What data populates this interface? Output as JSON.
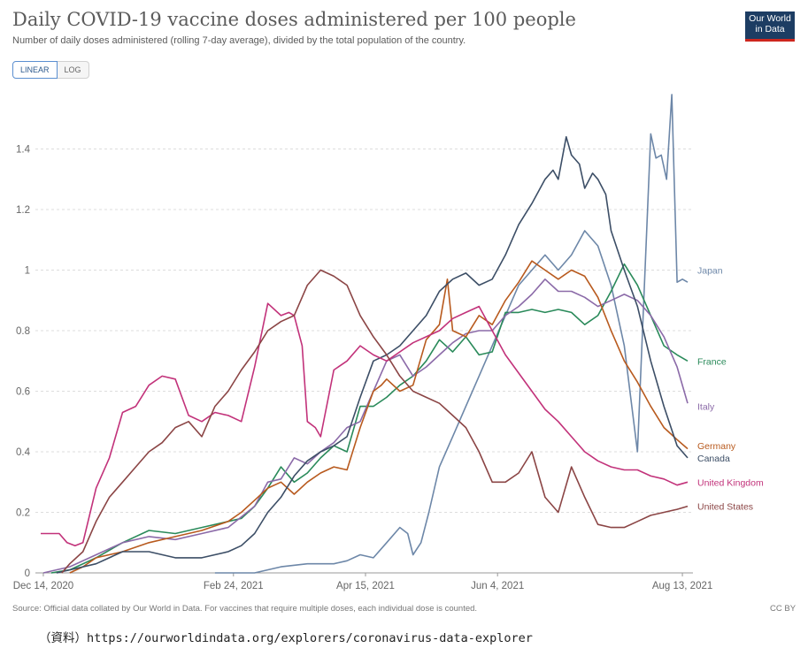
{
  "header": {
    "title": "Daily COVID-19 vaccine doses administered per 100 people",
    "subtitle": "Number of daily doses administered (rolling 7-day average), divided by the total population of the country.",
    "logo_line1": "Our World",
    "logo_line2": "in Data"
  },
  "controls": {
    "linear_label": "LINEAR",
    "log_label": "LOG"
  },
  "footer": {
    "source": "Source: Official data collated by Our World in Data. For vaccines that require multiple doses, each individual dose is counted.",
    "license": "CC BY",
    "reference": "（資料）https://ourworldindata.org/explorers/coronavirus-data-explorer"
  },
  "chart_data": {
    "type": "line",
    "title": "Daily COVID-19 vaccine doses administered per 100 people",
    "xlabel": "",
    "ylabel": "",
    "ylim": [
      0,
      1.6
    ],
    "yticks": [
      0,
      0.2,
      0.4,
      0.6,
      0.8,
      1,
      1.2,
      1.4
    ],
    "ytick_labels": [
      "0",
      "0.2",
      "0.4",
      "0.6",
      "0.8",
      "1",
      "1.2",
      "1.4"
    ],
    "x_unit": "days since Dec 14, 2020",
    "xlim": [
      -3,
      246
    ],
    "xticks": [
      0,
      72,
      122,
      172,
      242
    ],
    "xtick_labels": [
      "Dec 14, 2020",
      "Feb 24, 2021",
      "Apr 15, 2021",
      "Jun 4, 2021",
      "Aug 13, 2021"
    ],
    "grid": true,
    "series": [
      {
        "name": "Japan",
        "color": "#6d87a8",
        "x": [
          65,
          80,
          90,
          100,
          110,
          115,
          120,
          125,
          130,
          135,
          138,
          140,
          143,
          146,
          150,
          155,
          160,
          165,
          170,
          175,
          180,
          185,
          190,
          195,
          200,
          205,
          210,
          215,
          220,
          225,
          230,
          232,
          234,
          236,
          238,
          240,
          242,
          244
        ],
        "y": [
          0,
          0,
          0.02,
          0.03,
          0.03,
          0.04,
          0.06,
          0.05,
          0.1,
          0.15,
          0.13,
          0.06,
          0.1,
          0.2,
          0.35,
          0.45,
          0.55,
          0.65,
          0.75,
          0.85,
          0.95,
          1.0,
          1.05,
          1.0,
          1.05,
          1.13,
          1.08,
          0.95,
          0.75,
          0.4,
          1.45,
          1.37,
          1.38,
          1.3,
          1.58,
          0.96,
          0.97,
          0.96
        ]
      },
      {
        "name": "France",
        "color": "#2a8a5a",
        "x": [
          3,
          10,
          20,
          30,
          40,
          50,
          60,
          70,
          75,
          80,
          85,
          90,
          95,
          100,
          105,
          110,
          115,
          120,
          125,
          130,
          135,
          140,
          145,
          150,
          155,
          160,
          165,
          170,
          175,
          180,
          185,
          190,
          195,
          200,
          205,
          210,
          215,
          220,
          225,
          230,
          235,
          240,
          244
        ],
        "y": [
          0,
          0.01,
          0.05,
          0.1,
          0.14,
          0.13,
          0.15,
          0.17,
          0.18,
          0.22,
          0.28,
          0.35,
          0.3,
          0.33,
          0.38,
          0.42,
          0.4,
          0.55,
          0.55,
          0.58,
          0.62,
          0.65,
          0.7,
          0.77,
          0.73,
          0.78,
          0.72,
          0.73,
          0.86,
          0.86,
          0.87,
          0.86,
          0.87,
          0.86,
          0.82,
          0.85,
          0.93,
          1.02,
          0.95,
          0.85,
          0.75,
          0.72,
          0.7
        ]
      },
      {
        "name": "Italy",
        "color": "#8b6aa8",
        "x": [
          0,
          10,
          20,
          30,
          40,
          50,
          60,
          70,
          80,
          85,
          90,
          95,
          100,
          105,
          110,
          115,
          120,
          125,
          130,
          135,
          140,
          145,
          150,
          155,
          160,
          165,
          170,
          175,
          180,
          185,
          190,
          195,
          200,
          205,
          210,
          215,
          220,
          225,
          230,
          235,
          240,
          244
        ],
        "y": [
          0,
          0.02,
          0.06,
          0.1,
          0.12,
          0.11,
          0.13,
          0.15,
          0.22,
          0.3,
          0.31,
          0.38,
          0.36,
          0.4,
          0.43,
          0.48,
          0.5,
          0.6,
          0.7,
          0.72,
          0.65,
          0.68,
          0.72,
          0.76,
          0.79,
          0.8,
          0.8,
          0.85,
          0.88,
          0.92,
          0.97,
          0.93,
          0.93,
          0.91,
          0.88,
          0.9,
          0.92,
          0.9,
          0.85,
          0.78,
          0.68,
          0.56
        ]
      },
      {
        "name": "Germany",
        "color": "#b85a1e",
        "x": [
          10,
          15,
          20,
          30,
          40,
          50,
          60,
          70,
          75,
          80,
          85,
          90,
          95,
          100,
          105,
          110,
          115,
          120,
          125,
          128,
          130,
          135,
          140,
          145,
          150,
          153,
          155,
          160,
          165,
          170,
          175,
          180,
          185,
          190,
          195,
          200,
          205,
          210,
          215,
          220,
          225,
          230,
          235,
          240,
          244
        ],
        "y": [
          0,
          0.02,
          0.05,
          0.07,
          0.1,
          0.12,
          0.14,
          0.17,
          0.2,
          0.24,
          0.28,
          0.3,
          0.26,
          0.3,
          0.33,
          0.35,
          0.34,
          0.48,
          0.6,
          0.62,
          0.64,
          0.6,
          0.62,
          0.77,
          0.82,
          0.97,
          0.8,
          0.78,
          0.85,
          0.82,
          0.9,
          0.96,
          1.03,
          1.0,
          0.97,
          1.0,
          0.98,
          0.91,
          0.8,
          0.7,
          0.63,
          0.55,
          0.48,
          0.44,
          0.41
        ]
      },
      {
        "name": "Canada",
        "color": "#3c4e66",
        "x": [
          5,
          10,
          20,
          30,
          40,
          50,
          60,
          70,
          75,
          80,
          85,
          90,
          95,
          100,
          105,
          110,
          115,
          120,
          125,
          130,
          135,
          140,
          145,
          150,
          155,
          160,
          165,
          170,
          175,
          180,
          185,
          190,
          193,
          195,
          198,
          200,
          203,
          205,
          208,
          210,
          213,
          215,
          220,
          225,
          230,
          235,
          240,
          244
        ],
        "y": [
          0,
          0.01,
          0.03,
          0.07,
          0.07,
          0.05,
          0.05,
          0.07,
          0.09,
          0.13,
          0.2,
          0.25,
          0.32,
          0.37,
          0.4,
          0.42,
          0.45,
          0.58,
          0.7,
          0.72,
          0.75,
          0.8,
          0.85,
          0.93,
          0.97,
          0.99,
          0.95,
          0.97,
          1.05,
          1.15,
          1.22,
          1.3,
          1.33,
          1.3,
          1.44,
          1.38,
          1.35,
          1.27,
          1.32,
          1.3,
          1.25,
          1.13,
          1.0,
          0.88,
          0.7,
          0.55,
          0.42,
          0.38
        ]
      },
      {
        "name": "United Kingdom",
        "color": "#c2327a",
        "x": [
          -1,
          3,
          6,
          9,
          12,
          15,
          20,
          25,
          30,
          35,
          40,
          45,
          50,
          55,
          60,
          65,
          70,
          75,
          80,
          85,
          90,
          93,
          95,
          98,
          100,
          103,
          105,
          110,
          115,
          120,
          125,
          130,
          135,
          140,
          145,
          150,
          155,
          160,
          165,
          170,
          175,
          180,
          185,
          190,
          195,
          200,
          205,
          210,
          215,
          220,
          225,
          230,
          235,
          240,
          244
        ],
        "y": [
          0.13,
          0.13,
          0.13,
          0.1,
          0.09,
          0.1,
          0.28,
          0.38,
          0.53,
          0.55,
          0.62,
          0.65,
          0.64,
          0.52,
          0.5,
          0.53,
          0.52,
          0.5,
          0.68,
          0.89,
          0.85,
          0.86,
          0.85,
          0.75,
          0.5,
          0.48,
          0.45,
          0.67,
          0.7,
          0.75,
          0.72,
          0.7,
          0.73,
          0.76,
          0.78,
          0.8,
          0.84,
          0.86,
          0.88,
          0.8,
          0.72,
          0.66,
          0.6,
          0.54,
          0.5,
          0.45,
          0.4,
          0.37,
          0.35,
          0.34,
          0.34,
          0.32,
          0.31,
          0.29,
          0.3
        ]
      },
      {
        "name": "United States",
        "color": "#8b4545",
        "x": [
          7,
          10,
          15,
          20,
          25,
          30,
          35,
          40,
          45,
          50,
          55,
          60,
          65,
          70,
          75,
          80,
          85,
          90,
          95,
          100,
          105,
          110,
          115,
          120,
          125,
          130,
          135,
          140,
          145,
          150,
          155,
          160,
          165,
          170,
          175,
          180,
          185,
          190,
          195,
          200,
          205,
          210,
          215,
          220,
          225,
          230,
          235,
          240,
          244
        ],
        "y": [
          0,
          0.03,
          0.07,
          0.17,
          0.25,
          0.3,
          0.35,
          0.4,
          0.43,
          0.48,
          0.5,
          0.45,
          0.55,
          0.6,
          0.67,
          0.73,
          0.8,
          0.83,
          0.85,
          0.95,
          1.0,
          0.98,
          0.95,
          0.85,
          0.78,
          0.72,
          0.65,
          0.6,
          0.58,
          0.56,
          0.52,
          0.48,
          0.4,
          0.3,
          0.3,
          0.33,
          0.4,
          0.25,
          0.2,
          0.35,
          0.25,
          0.16,
          0.15,
          0.15,
          0.17,
          0.19,
          0.2,
          0.21,
          0.22
        ]
      }
    ]
  }
}
